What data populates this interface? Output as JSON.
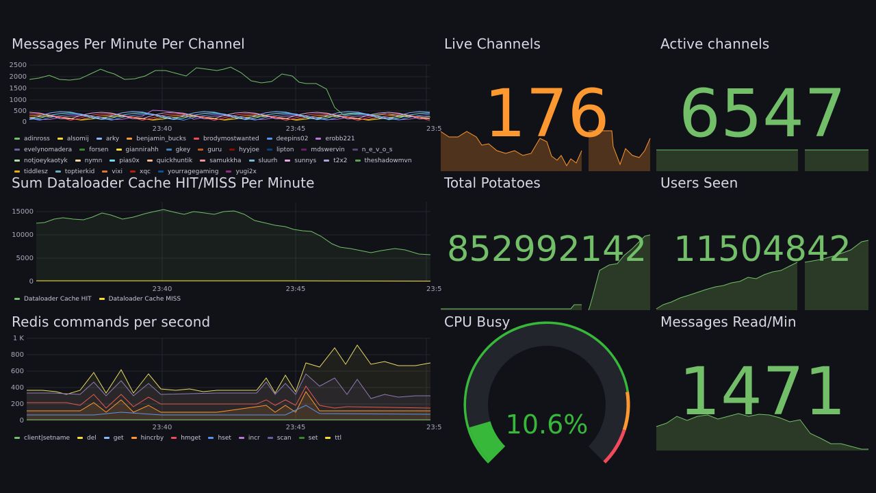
{
  "dashboard": {
    "background": "#111217",
    "panels": {
      "messages": {
        "title": "Messages Per Minute Per Channel",
        "y_ticks": [
          "2500",
          "2000",
          "1500",
          "1000",
          "500",
          "0"
        ],
        "x_ticks": [
          "23:40",
          "23:45",
          "23:5"
        ],
        "legend": [
          {
            "name": "adinross",
            "color": "#73bf69"
          },
          {
            "name": "alsomij",
            "color": "#fade2a"
          },
          {
            "name": "arky",
            "color": "#8ab8ff"
          },
          {
            "name": "benjamin_bucks",
            "color": "#ff9830"
          },
          {
            "name": "brodymostwanted",
            "color": "#f2495c"
          },
          {
            "name": "deepins02",
            "color": "#5794f2"
          },
          {
            "name": "erobb221",
            "color": "#b877d9"
          },
          {
            "name": "evelynomadera",
            "color": "#705da0"
          },
          {
            "name": "forsen",
            "color": "#37872d"
          },
          {
            "name": "giannirahh",
            "color": "#fade2a"
          },
          {
            "name": "gkey",
            "color": "#447ebc"
          },
          {
            "name": "guru",
            "color": "#c15c17"
          },
          {
            "name": "hyyjoe",
            "color": "#890f02"
          },
          {
            "name": "lipton",
            "color": "#0a437c"
          },
          {
            "name": "mdswervin",
            "color": "#6d1f62"
          },
          {
            "name": "n_e_v_o_s",
            "color": "#584477"
          },
          {
            "name": "notjoeykaotyk",
            "color": "#b7dbab"
          },
          {
            "name": "nymn",
            "color": "#f4d598"
          },
          {
            "name": "pias0x",
            "color": "#70dbed"
          },
          {
            "name": "quickhuntik",
            "color": "#f9ba8f"
          },
          {
            "name": "samukkha",
            "color": "#f29191"
          },
          {
            "name": "sluurh",
            "color": "#82b5d8"
          },
          {
            "name": "sunnys",
            "color": "#e5a8e2"
          },
          {
            "name": "t2x2",
            "color": "#aea2e0"
          },
          {
            "name": "theshadowmvn",
            "color": "#629e51"
          },
          {
            "name": "tiddlesz",
            "color": "#e5ac0e"
          },
          {
            "name": "toptierkid",
            "color": "#64b0c8"
          },
          {
            "name": "vixi",
            "color": "#e0752d"
          },
          {
            "name": "xqc",
            "color": "#bf1b00"
          },
          {
            "name": "yourragegaming",
            "color": "#0a50a1"
          },
          {
            "name": "yugi2x",
            "color": "#962d82"
          }
        ]
      },
      "cache": {
        "title": "Sum Dataloader Cache HIT/MISS Per Minute",
        "y_ticks": [
          "15000",
          "10000",
          "5000",
          "0"
        ],
        "x_ticks": [
          "23:40",
          "23:45",
          "23:5"
        ],
        "legend": [
          {
            "name": "Dataloader Cache HIT",
            "color": "#73bf69"
          },
          {
            "name": "Dataloader Cache MISS",
            "color": "#fade2a"
          }
        ]
      },
      "redis": {
        "title": "Redis commands per second",
        "y_ticks": [
          "1 K",
          "800",
          "600",
          "400",
          "200",
          "0"
        ],
        "x_ticks": [
          "23:40",
          "23:45",
          "23:5"
        ],
        "legend": [
          {
            "name": "client|setname",
            "color": "#73bf69"
          },
          {
            "name": "del",
            "color": "#fade2a"
          },
          {
            "name": "get",
            "color": "#8ab8ff"
          },
          {
            "name": "hincrby",
            "color": "#ff9830"
          },
          {
            "name": "hmget",
            "color": "#f2495c"
          },
          {
            "name": "hset",
            "color": "#5794f2"
          },
          {
            "name": "incr",
            "color": "#b877d9"
          },
          {
            "name": "scan",
            "color": "#705da0"
          },
          {
            "name": "set",
            "color": "#37872d"
          },
          {
            "name": "ttl",
            "color": "#fade2a"
          }
        ]
      },
      "live_channels": {
        "title": "Live Channels",
        "value": "176",
        "color": "#ff9830"
      },
      "active_channels": {
        "title": "Active channels",
        "value": "6547",
        "color": "#73bf69"
      },
      "total_potatoes": {
        "title": "Total Potatoes",
        "value": "852992142",
        "color": "#73bf69"
      },
      "users_seen": {
        "title": "Users Seen",
        "value": "11504842",
        "color": "#73bf69"
      },
      "cpu_busy": {
        "title": "CPU Busy",
        "value": "10.6%",
        "percent": 10.6,
        "color": "#37b83a"
      },
      "messages_read": {
        "title": "Messages Read/Min",
        "value": "1471",
        "color": "#73bf69"
      }
    }
  }
}
